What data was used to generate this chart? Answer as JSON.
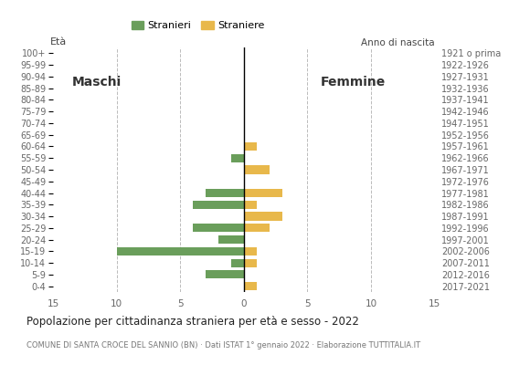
{
  "age_groups": [
    "0-4",
    "5-9",
    "10-14",
    "15-19",
    "20-24",
    "25-29",
    "30-34",
    "35-39",
    "40-44",
    "45-49",
    "50-54",
    "55-59",
    "60-64",
    "65-69",
    "70-74",
    "75-79",
    "80-84",
    "85-89",
    "90-94",
    "95-99",
    "100+"
  ],
  "birth_years": [
    "2017-2021",
    "2012-2016",
    "2007-2011",
    "2002-2006",
    "1997-2001",
    "1992-1996",
    "1987-1991",
    "1982-1986",
    "1977-1981",
    "1972-1976",
    "1967-1971",
    "1962-1966",
    "1957-1961",
    "1952-1956",
    "1947-1951",
    "1942-1946",
    "1937-1941",
    "1932-1936",
    "1927-1931",
    "1922-1926",
    "1921 o prima"
  ],
  "maschi": [
    0,
    3,
    1,
    10,
    2,
    4,
    0,
    4,
    3,
    0,
    0,
    1,
    0,
    0,
    0,
    0,
    0,
    0,
    0,
    0,
    0
  ],
  "femmine": [
    1,
    0,
    1,
    1,
    0,
    2,
    3,
    1,
    3,
    0,
    2,
    0,
    1,
    0,
    0,
    0,
    0,
    0,
    0,
    0,
    0
  ],
  "maschi_color": "#6a9e5b",
  "femmine_color": "#e8b84b",
  "title": "Popolazione per cittadinanza straniera per età e sesso - 2022",
  "subtitle": "COMUNE DI SANTA CROCE DEL SANNIO (BN) · Dati ISTAT 1° gennaio 2022 · Elaborazione TUTTITALIA.IT",
  "xlabel_left": "Maschi",
  "xlabel_right": "Femmine",
  "legend_maschi": "Stranieri",
  "legend_femmine": "Straniere",
  "xlim": 15,
  "background_color": "#ffffff",
  "grid_color": "#bbbbbb"
}
